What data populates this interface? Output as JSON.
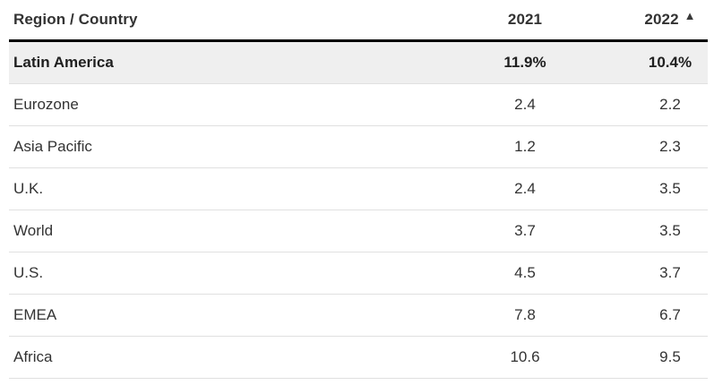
{
  "table": {
    "columns": {
      "region": "Region / Country",
      "y2021": "2021",
      "y2022": "2022"
    },
    "sort_icon": "▲",
    "rows": [
      {
        "region": "Latin America",
        "v2021": "11.9%",
        "v2022": "10.4%",
        "highlighted": true
      },
      {
        "region": "Eurozone",
        "v2021": "2.4",
        "v2022": "2.2",
        "highlighted": false
      },
      {
        "region": "Asia Pacific",
        "v2021": "1.2",
        "v2022": "2.3",
        "highlighted": false
      },
      {
        "region": "U.K.",
        "v2021": "2.4",
        "v2022": "3.5",
        "highlighted": false
      },
      {
        "region": "World",
        "v2021": "3.7",
        "v2022": "3.5",
        "highlighted": false
      },
      {
        "region": "U.S.",
        "v2021": "4.5",
        "v2022": "3.7",
        "highlighted": false
      },
      {
        "region": "EMEA",
        "v2021": "7.8",
        "v2022": "6.7",
        "highlighted": false
      },
      {
        "region": "Africa",
        "v2021": "10.6",
        "v2022": "9.5",
        "highlighted": false
      }
    ]
  },
  "colors": {
    "header_rule": "#000000",
    "row_divider": "#e0e0e0",
    "highlight_bg": "#efefef",
    "header_text": "#1f1f1f",
    "body_text": "#333333",
    "sort_icon": "#3a3a3a"
  },
  "chart_data": {
    "type": "table",
    "title": "",
    "categories": [
      "Latin America",
      "Eurozone",
      "Asia Pacific",
      "U.K.",
      "World",
      "U.S.",
      "EMEA",
      "Africa"
    ],
    "series": [
      {
        "name": "2021",
        "values": [
          11.9,
          2.4,
          1.2,
          2.4,
          3.7,
          4.5,
          7.8,
          10.6
        ]
      },
      {
        "name": "2022",
        "values": [
          10.4,
          2.2,
          2.3,
          3.5,
          3.5,
          3.7,
          6.7,
          9.5
        ]
      }
    ],
    "unit": "%",
    "column_headers": [
      "Region / Country",
      "2021",
      "2022"
    ],
    "sort_indicator_column": "2022",
    "sort_indicator_glyph": "▲",
    "highlighted_row": "Latin America",
    "layout_hints": {
      "first_row_highlighted": true,
      "numeric_columns_centered": true,
      "thick_rule_under_header": true
    }
  }
}
